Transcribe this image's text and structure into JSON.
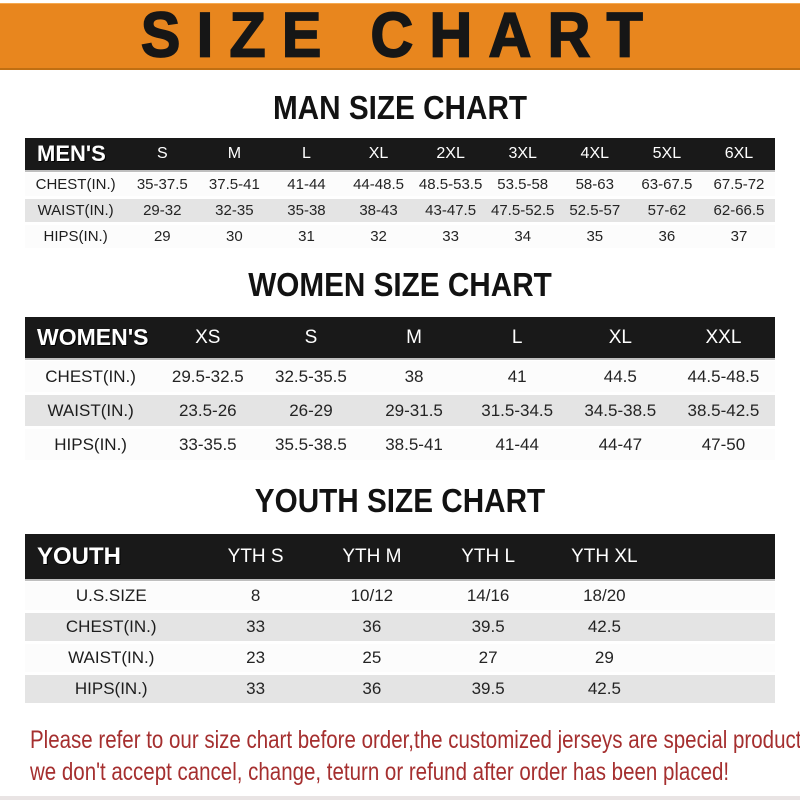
{
  "banner": {
    "title": "SIZE CHART",
    "bg_color": "#E8861E",
    "text_color": "#161616"
  },
  "tables": [
    {
      "id": "men",
      "title": "MAN SIZE CHART",
      "header_label": "MEN'S",
      "columns": [
        "S",
        "M",
        "L",
        "XL",
        "2XL",
        "3XL",
        "4XL",
        "5XL",
        "6XL"
      ],
      "rows": [
        {
          "label": "CHEST(IN.)",
          "values": [
            "35-37.5",
            "37.5-41",
            "41-44",
            "44-48.5",
            "48.5-53.5",
            "53.5-58",
            "58-63",
            "63-67.5",
            "67.5-72"
          ]
        },
        {
          "label": "WAIST(IN.)",
          "values": [
            "29-32",
            "32-35",
            "35-38",
            "38-43",
            "43-47.5",
            "47.5-52.5",
            "52.5-57",
            "57-62",
            "62-66.5"
          ]
        },
        {
          "label": "HIPS(IN.)",
          "values": [
            "29",
            "30",
            "31",
            "32",
            "33",
            "34",
            "35",
            "36",
            "37"
          ]
        }
      ]
    },
    {
      "id": "women",
      "title": "WOMEN SIZE CHART",
      "header_label": "WOMEN'S",
      "columns": [
        "XS",
        "S",
        "M",
        "L",
        "XL",
        "XXL"
      ],
      "rows": [
        {
          "label": "CHEST(IN.)",
          "values": [
            "29.5-32.5",
            "32.5-35.5",
            "38",
            "41",
            "44.5",
            "44.5-48.5"
          ]
        },
        {
          "label": "WAIST(IN.)",
          "values": [
            "23.5-26",
            "26-29",
            "29-31.5",
            "31.5-34.5",
            "34.5-38.5",
            "38.5-42.5"
          ]
        },
        {
          "label": "HIPS(IN.)",
          "values": [
            "33-35.5",
            "35.5-38.5",
            "38.5-41",
            "41-44",
            "44-47",
            "47-50"
          ]
        }
      ]
    },
    {
      "id": "youth",
      "title": "YOUTH SIZE CHART",
      "header_label": "YOUTH",
      "columns": [
        "YTH S",
        "YTH M",
        "YTH L",
        "YTH XL"
      ],
      "rows": [
        {
          "label": "U.S.SIZE",
          "values": [
            "8",
            "10/12",
            "14/16",
            "18/20"
          ]
        },
        {
          "label": "CHEST(IN.)",
          "values": [
            "33",
            "36",
            "39.5",
            "42.5"
          ]
        },
        {
          "label": "WAIST(IN.)",
          "values": [
            "23",
            "25",
            "27",
            "29"
          ]
        },
        {
          "label": "HIPS(IN.)",
          "values": [
            "33",
            "36",
            "39.5",
            "42.5"
          ]
        }
      ]
    }
  ],
  "footer": {
    "line1": "Please refer to our size chart before order,the customized jerseys are special products,",
    "line2": "we don't accept cancel, change, teturn or refund after order has been placed!",
    "text_color": "#A52F2F"
  },
  "table_colors": {
    "header_bg": "#191919",
    "header_text": "#FFFFFF",
    "stripe_gray": "#E4E4E4",
    "stripe_white": "#FCFCFC"
  }
}
